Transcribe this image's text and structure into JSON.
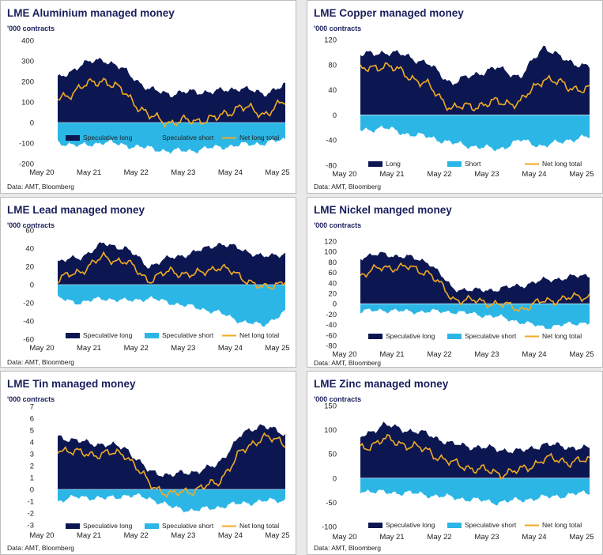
{
  "colors": {
    "long": "#0c1752",
    "short": "#2bb6e6",
    "net": "#f2ab22"
  },
  "charts": [
    {
      "title": "LME Aluminium managed money",
      "unit": "'000 contracts",
      "source": "Data: AMT, Bloomberg",
      "yticks": [
        400,
        300,
        200,
        100,
        0,
        -100,
        -200
      ],
      "ylim": [
        -200,
        400
      ],
      "xticks": [
        "May 20",
        "May 21",
        "May 22",
        "May 23",
        "May 24",
        "May 25"
      ],
      "legend": [
        "Speculative long",
        "Speculative short",
        "Net long total"
      ],
      "chart_data": {
        "type": "area",
        "x": [
          "May 20",
          "Nov 20",
          "May 21",
          "Nov 21",
          "May 22",
          "Nov 22",
          "May 23",
          "Nov 23",
          "May 24",
          "Nov 24",
          "May 25"
        ],
        "series": [
          {
            "name": "Speculative long",
            "values": [
              210,
              280,
              310,
              250,
              160,
              140,
              150,
              150,
              170,
              140,
              180
            ]
          },
          {
            "name": "Speculative short",
            "values": [
              -95,
              -115,
              -95,
              -110,
              -125,
              -140,
              -135,
              -120,
              -110,
              -100,
              -85
            ]
          },
          {
            "name": "Net long total",
            "values": [
              110,
              170,
              210,
              140,
              30,
              0,
              10,
              20,
              80,
              40,
              100
            ]
          }
        ]
      }
    },
    {
      "title": "LME Copper managed money",
      "unit": "'000 contracts",
      "source": "Data: AMT, Bloomberg",
      "yticks": [
        120,
        80,
        40,
        0,
        -40,
        -80
      ],
      "ylim": [
        -80,
        120
      ],
      "xticks": [
        "May 20",
        "May 21",
        "May 22",
        "May 23",
        "May 24",
        "May 25"
      ],
      "legend": [
        "Long",
        "Short",
        "Net long total"
      ],
      "chart_data": {
        "type": "area",
        "x": [
          "May 20",
          "Nov 20",
          "May 21",
          "Nov 21",
          "May 22",
          "Nov 22",
          "May 23",
          "Nov 23",
          "May 24",
          "Nov 24",
          "May 25"
        ],
        "series": [
          {
            "name": "Long",
            "values": [
              95,
              100,
              95,
              80,
              50,
              65,
              75,
              60,
              110,
              85,
              78
            ]
          },
          {
            "name": "Short",
            "values": [
              -25,
              -20,
              -30,
              -35,
              -45,
              -50,
              -55,
              -40,
              -50,
              -40,
              -35
            ]
          },
          {
            "name": "Net long total",
            "values": [
              70,
              80,
              65,
              45,
              10,
              15,
              20,
              20,
              60,
              45,
              40
            ]
          }
        ]
      }
    },
    {
      "title": "LME Lead managed money",
      "unit": "'000 contracts",
      "source": "Data: AMT, Bloomberg",
      "yticks": [
        60,
        40,
        20,
        0,
        -20,
        -40,
        -60
      ],
      "ylim": [
        -60,
        60
      ],
      "xticks": [
        "May 20",
        "May 21",
        "May 22",
        "May 23",
        "May 24",
        "May 25"
      ],
      "legend": [
        "Speculative long",
        "Speculative short",
        "Net long total"
      ],
      "chart_data": {
        "type": "area",
        "x": [
          "May 20",
          "Nov 20",
          "May 21",
          "Nov 21",
          "May 22",
          "Nov 22",
          "May 23",
          "Nov 23",
          "May 24",
          "Nov 24",
          "May 25"
        ],
        "series": [
          {
            "name": "Speculative long",
            "values": [
              25,
              30,
              45,
              40,
              20,
              30,
              35,
              45,
              40,
              30,
              35
            ]
          },
          {
            "name": "Speculative short",
            "values": [
              -15,
              -20,
              -15,
              -18,
              -15,
              -20,
              -25,
              -30,
              -40,
              -45,
              -30
            ]
          },
          {
            "name": "Net long total",
            "values": [
              5,
              15,
              30,
              25,
              5,
              15,
              10,
              20,
              10,
              -5,
              5
            ]
          }
        ]
      }
    },
    {
      "title": "LME Nickel manged money",
      "unit": "'000 contracts",
      "source": "Data: AMT, Bloomberg",
      "yticks": [
        120,
        100,
        80,
        60,
        40,
        20,
        0,
        -20,
        -40,
        -60,
        -80
      ],
      "ylim": [
        -80,
        120
      ],
      "xticks": [
        "May 20",
        "May 21",
        "May 22",
        "May 23",
        "May 24",
        "May 25"
      ],
      "legend": [
        "Speculative long",
        "Speculative short",
        "Net long total"
      ],
      "chart_data": {
        "type": "area",
        "x": [
          "May 20",
          "Nov 20",
          "May 21",
          "Nov 21",
          "May 22",
          "Nov 22",
          "May 23",
          "Nov 23",
          "May 24",
          "Nov 24",
          "May 25"
        ],
        "series": [
          {
            "name": "Speculative long",
            "values": [
              90,
              95,
              90,
              80,
              30,
              25,
              28,
              35,
              45,
              50,
              55
            ]
          },
          {
            "name": "Speculative short",
            "values": [
              -15,
              -12,
              -15,
              -15,
              -15,
              -20,
              -25,
              -35,
              -45,
              -40,
              -35
            ]
          },
          {
            "name": "Net long total",
            "values": [
              55,
              70,
              70,
              60,
              10,
              5,
              0,
              -10,
              5,
              10,
              15
            ]
          }
        ]
      }
    },
    {
      "title": "LME Tin managed money",
      "unit": "'000 contracts",
      "source": "Data: AMT, Bloomberg",
      "yticks": [
        7,
        6,
        5,
        4,
        3,
        2,
        1,
        0,
        -1,
        -2,
        -3
      ],
      "ylim": [
        -3,
        7
      ],
      "xticks": [
        "May 20",
        "May 21",
        "May 22",
        "May 23",
        "May 24",
        "May 25"
      ],
      "legend": [
        "Speculative long",
        "Speculative short",
        "Net long total"
      ],
      "chart_data": {
        "type": "area",
        "x": [
          "May 20",
          "Nov 20",
          "May 21",
          "Nov 21",
          "May 22",
          "Nov 22",
          "May 23",
          "Nov 23",
          "May 24",
          "Nov 24",
          "May 25"
        ],
        "series": [
          {
            "name": "Speculative long",
            "values": [
              4.5,
              4.0,
              3.8,
              3.5,
              1.5,
              1.2,
              1.5,
              2.0,
              4.5,
              5.5,
              4.5
            ]
          },
          {
            "name": "Speculative short",
            "values": [
              -1.0,
              -0.6,
              -0.8,
              -0.5,
              -0.7,
              -1.5,
              -1.8,
              -1.5,
              -1.2,
              -1.0,
              -0.9
            ]
          },
          {
            "name": "Net long total",
            "values": [
              3.5,
              3.0,
              3.0,
              3.0,
              0.5,
              -0.5,
              0.0,
              0.5,
              3.0,
              4.5,
              3.8
            ]
          }
        ]
      }
    },
    {
      "title": "LME Zinc managed money",
      "unit": "'000 contracts",
      "source": "Data: AMT, Bloomberg",
      "yticks": [
        150,
        100,
        50,
        0,
        -50,
        -100
      ],
      "ylim": [
        -100,
        150
      ],
      "xticks": [
        "May 20",
        "May 21",
        "May 22",
        "May 23",
        "May 24",
        "May 25"
      ],
      "legend": [
        "Speculative long",
        "Speculative short",
        "Net long total"
      ],
      "chart_data": {
        "type": "area",
        "x": [
          "May 20",
          "Nov 20",
          "May 21",
          "Nov 21",
          "May 22",
          "Nov 22",
          "May 23",
          "Nov 23",
          "May 24",
          "Nov 24",
          "May 25"
        ],
        "series": [
          {
            "name": "Speculative long",
            "values": [
              85,
              110,
              100,
              90,
              70,
              65,
              60,
              55,
              70,
              65,
              60
            ]
          },
          {
            "name": "Speculative short",
            "values": [
              -25,
              -30,
              -30,
              -35,
              -40,
              -45,
              -50,
              -45,
              -40,
              -35,
              -30
            ]
          },
          {
            "name": "Net long total",
            "values": [
              60,
              80,
              70,
              55,
              30,
              20,
              10,
              15,
              40,
              35,
              35
            ]
          }
        ]
      }
    }
  ]
}
